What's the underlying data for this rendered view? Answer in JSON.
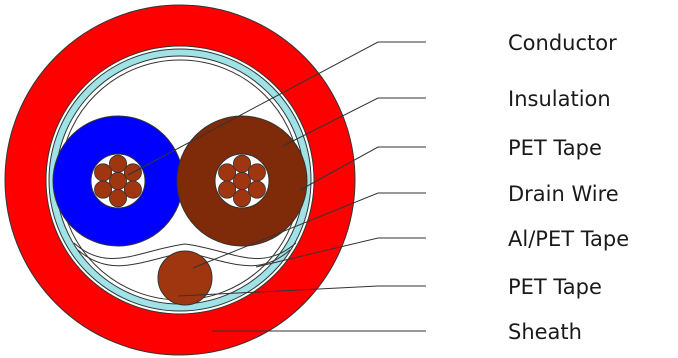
{
  "labels": {
    "conductor": "Conductor",
    "insulation": "Insulation",
    "pet_tape_inner": "PET Tape",
    "drain_wire": "Drain Wire",
    "al_pet_tape": "Al/PET Tape",
    "pet_tape_outer": "PET Tape",
    "sheath": "Sheath"
  },
  "colors": {
    "sheath": "#ff0000",
    "al_pet_tape": "#9fe3e6",
    "insulation_blue": "#0000ff",
    "insulation_brown": "#7f2a08",
    "conductor": "#a0360f",
    "drain_wire": "#a0360f",
    "outline": "#333333"
  }
}
